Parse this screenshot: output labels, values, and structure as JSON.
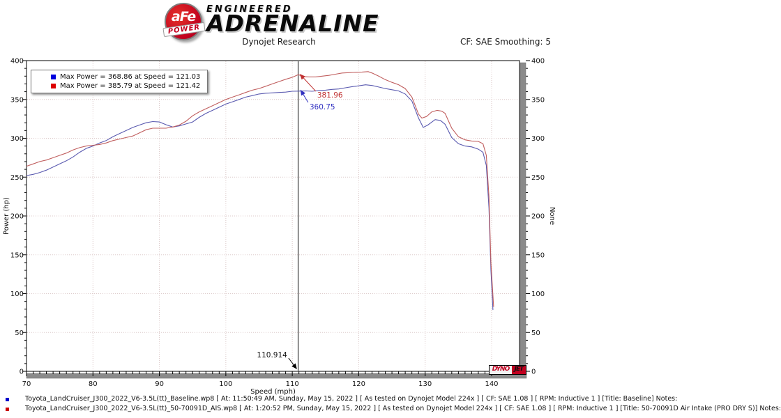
{
  "header": {
    "logo": {
      "badge_top": "aFe",
      "badge_bottom": "POWER",
      "line1": "ENGINEERED",
      "line2": "ADRENALINE"
    },
    "title": "Dynojet Research",
    "smoothing": "CF: SAE Smoothing: 5"
  },
  "chart_data": {
    "type": "line",
    "xlabel": "Speed (mph)",
    "ylabel": "Power (hp)",
    "ylabel_right": "None",
    "xlim": [
      70,
      144.2
    ],
    "ylim": [
      0,
      400
    ],
    "x_major_ticks": [
      70,
      80,
      90,
      100,
      110,
      120,
      130,
      140
    ],
    "y_major_ticks": [
      0,
      50,
      100,
      150,
      200,
      250,
      300,
      350,
      400
    ],
    "x_minor_step": 1,
    "y_minor_step": 10,
    "grid": "dotted",
    "grid_color": "#dcc9c9",
    "legend": [
      {
        "color": "#0000dd",
        "label": "Max Power = 368.86 at Speed = 121.03"
      },
      {
        "color": "#dd0000",
        "label": "Max Power = 385.79 at Speed = 121.42"
      }
    ],
    "cursor": {
      "x": 110.914,
      "label": "110.914"
    },
    "annotations": [
      {
        "text": "381.96",
        "color": "#c03030",
        "x": 110.914,
        "y": 381.96
      },
      {
        "text": "360.75",
        "color": "#3030c0",
        "x": 110.914,
        "y": 360.75
      }
    ],
    "series": [
      {
        "name": "Baseline",
        "color": "#5a5ab0",
        "points": [
          [
            70,
            252
          ],
          [
            71,
            253.5
          ],
          [
            72,
            256
          ],
          [
            73,
            259
          ],
          [
            74,
            263
          ],
          [
            75,
            267
          ],
          [
            76,
            271
          ],
          [
            77,
            276
          ],
          [
            78,
            282
          ],
          [
            79,
            287
          ],
          [
            80,
            290
          ],
          [
            81,
            294
          ],
          [
            82,
            297
          ],
          [
            83,
            302
          ],
          [
            84,
            306
          ],
          [
            85,
            310
          ],
          [
            86,
            314
          ],
          [
            87,
            317
          ],
          [
            88,
            320
          ],
          [
            89,
            321.5
          ],
          [
            90,
            321
          ],
          [
            91,
            317.5
          ],
          [
            92,
            314.5
          ],
          [
            93,
            316
          ],
          [
            94,
            318.5
          ],
          [
            95,
            321
          ],
          [
            96,
            327
          ],
          [
            97,
            332
          ],
          [
            98,
            336
          ],
          [
            99,
            340
          ],
          [
            100,
            344
          ],
          [
            101,
            347
          ],
          [
            102,
            350
          ],
          [
            103,
            353
          ],
          [
            104,
            355
          ],
          [
            105,
            357
          ],
          [
            106,
            358
          ],
          [
            107,
            358.5
          ],
          [
            108,
            359
          ],
          [
            109,
            359.5
          ],
          [
            110,
            360.5
          ],
          [
            110.914,
            360.75
          ],
          [
            112,
            361
          ],
          [
            113,
            360.5
          ],
          [
            114,
            361.5
          ],
          [
            115,
            362
          ],
          [
            116,
            363
          ],
          [
            117,
            363.5
          ],
          [
            118,
            365
          ],
          [
            119,
            366.5
          ],
          [
            120,
            367.5
          ],
          [
            121.03,
            368.86
          ],
          [
            122,
            368
          ],
          [
            123,
            366
          ],
          [
            124,
            364
          ],
          [
            125,
            362.5
          ],
          [
            126,
            361
          ],
          [
            127,
            357
          ],
          [
            128,
            348
          ],
          [
            129,
            326
          ],
          [
            129.7,
            314
          ],
          [
            130.4,
            317
          ],
          [
            131.5,
            324
          ],
          [
            132.3,
            323
          ],
          [
            133,
            318
          ],
          [
            134,
            301
          ],
          [
            135,
            293
          ],
          [
            136,
            290
          ],
          [
            137,
            289
          ],
          [
            138,
            286
          ],
          [
            138.7,
            282
          ],
          [
            139.2,
            265
          ],
          [
            139.6,
            210
          ],
          [
            139.9,
            130
          ],
          [
            140.2,
            79
          ]
        ]
      },
      {
        "name": "50-70091D Air Intake (PRO DRY S)",
        "color": "#c05e5e",
        "points": [
          [
            70,
            264
          ],
          [
            71,
            267
          ],
          [
            72,
            270
          ],
          [
            73,
            272
          ],
          [
            74,
            275
          ],
          [
            75,
            278
          ],
          [
            76,
            281
          ],
          [
            77,
            285
          ],
          [
            78,
            288
          ],
          [
            79,
            290
          ],
          [
            80,
            291
          ],
          [
            81,
            292
          ],
          [
            82,
            294
          ],
          [
            83,
            297
          ],
          [
            84,
            299
          ],
          [
            85,
            301
          ],
          [
            86,
            303
          ],
          [
            87,
            307
          ],
          [
            88,
            311
          ],
          [
            89,
            313
          ],
          [
            90,
            313
          ],
          [
            91,
            313
          ],
          [
            92,
            314.5
          ],
          [
            93,
            317
          ],
          [
            94,
            322
          ],
          [
            95,
            329
          ],
          [
            96,
            334
          ],
          [
            97,
            338
          ],
          [
            98,
            342
          ],
          [
            99,
            346
          ],
          [
            100,
            350
          ],
          [
            101,
            353
          ],
          [
            102,
            356
          ],
          [
            103,
            359
          ],
          [
            104,
            362
          ],
          [
            105,
            364
          ],
          [
            106,
            367
          ],
          [
            107,
            370
          ],
          [
            108,
            373
          ],
          [
            109,
            376
          ],
          [
            110,
            378.5
          ],
          [
            110.914,
            381.96
          ],
          [
            111.6,
            379.5
          ],
          [
            112.5,
            379
          ],
          [
            113.5,
            379
          ],
          [
            114.5,
            380
          ],
          [
            115.5,
            381
          ],
          [
            116.5,
            382.5
          ],
          [
            117.5,
            384
          ],
          [
            118.5,
            384.5
          ],
          [
            119.5,
            385
          ],
          [
            120.5,
            385.3
          ],
          [
            121.42,
            385.79
          ],
          [
            122,
            384
          ],
          [
            123,
            380
          ],
          [
            124,
            375.5
          ],
          [
            125,
            372
          ],
          [
            126,
            369
          ],
          [
            127,
            364
          ],
          [
            128,
            353
          ],
          [
            129,
            331
          ],
          [
            129.5,
            326
          ],
          [
            130.2,
            328
          ],
          [
            131,
            334
          ],
          [
            131.8,
            336
          ],
          [
            132.5,
            335
          ],
          [
            133,
            332
          ],
          [
            134,
            313
          ],
          [
            135,
            302
          ],
          [
            136,
            298
          ],
          [
            137,
            296.5
          ],
          [
            138,
            296
          ],
          [
            138.7,
            293
          ],
          [
            139.2,
            278
          ],
          [
            139.6,
            225
          ],
          [
            139.9,
            140
          ],
          [
            140.3,
            83
          ]
        ]
      }
    ]
  },
  "watermark": {
    "dyno": "DYNO",
    "jet": "JET"
  },
  "footer": {
    "runs": [
      {
        "bullet_color": "#0000cc",
        "text": "Toyota_LandCruiser_J300_2022_V6-3.5L(tt)_Baseline.wp8 [ At: 11:50:49 AM, Sunday, May 15, 2022 ] [ As tested on Dynojet Model 224x ] [ CF: SAE 1.08 ] [ RPM: Inductive 1 ] [Title: Baseline]  Notes:"
      },
      {
        "bullet_color": "#cc0000",
        "text": "Toyota_LandCruiser_J300_2022_V6-3.5L(tt)_50-70091D_AIS.wp8 [ At: 1:20:52 PM, Sunday, May 15, 2022 ] [ As tested on Dynojet Model 224x ] [ CF: SAE 1.08 ] [ RPM: Inductive 1 ] [Title: 50-70091D Air Intake (PRO DRY S)]  Notes:"
      }
    ]
  }
}
